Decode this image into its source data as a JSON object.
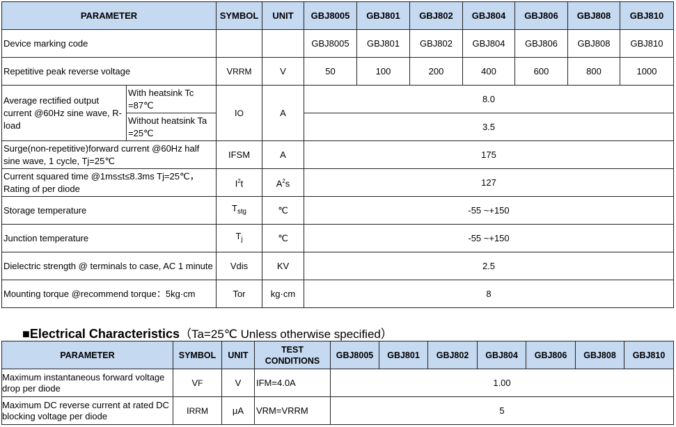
{
  "table1": {
    "headers": {
      "parameter": "PARAMETER",
      "symbol": "SYMBOL",
      "unit": "UNIT",
      "models": [
        "GBJ8005",
        "GBJ801",
        "GBJ802",
        "GBJ804",
        "GBJ806",
        "GBJ808",
        "GBJ810"
      ]
    },
    "marking": {
      "param": "Device marking code",
      "values": [
        "GBJ8005",
        "GBJ801",
        "GBJ802",
        "GBJ804",
        "GBJ806",
        "GBJ808",
        "GBJ810"
      ]
    },
    "vrrm": {
      "param": "Repetitive peak reverse voltage",
      "sym": "V",
      "sym_sub": "RRM",
      "unit": "V",
      "values": [
        "50",
        "100",
        "200",
        "400",
        "600",
        "800",
        "1000"
      ]
    },
    "io": {
      "param": "Average rectified output current  @60Hz sine wave, R-load",
      "cond1": "With heatsink Tc =87℃",
      "cond2": "Without heatsink Ta =25℃",
      "sym": "I",
      "sym_sub": "O",
      "unit": "A",
      "value1": "8.0",
      "value2": "3.5"
    },
    "ifsm": {
      "param": "Surge(non-repetitive)forward current @60Hz half sine wave, 1 cycle, Tj=25℃",
      "sym": "I",
      "sym_sub": "FSM",
      "unit": "A",
      "value": "175"
    },
    "i2t": {
      "param": "Current squared time @1ms≤t≤8.3ms Tj=25℃， Rating of per diode",
      "sym": "I",
      "sym_sup": "2",
      "sym_end": "t",
      "unit": "A",
      "unit_sup": "2",
      "unit_end": "s",
      "value": "127"
    },
    "tstg": {
      "param": "Storage temperature",
      "sym": "T",
      "sym_sub": "stg",
      "unit": "℃",
      "value": "-55 ~+150"
    },
    "tj": {
      "param": "Junction temperature",
      "sym": "T",
      "sym_sub": "j",
      "unit": "℃",
      "value": "-55 ~+150"
    },
    "vdis": {
      "param": "Dielectric strength @ terminals to case, AC 1 minute",
      "sym": "Vdis",
      "unit": "KV",
      "value": "2.5"
    },
    "tor": {
      "param": "Mounting torque @recommend torque：5kg·cm",
      "sym": "Tor",
      "unit": "kg·cm",
      "value": "8"
    }
  },
  "section2": {
    "bullet": "■",
    "title": "Electrical Characteristics",
    "note": "（Ta=25℃ Unless otherwise specified）"
  },
  "table2": {
    "headers": {
      "parameter": "PARAMETER",
      "symbol": "SYMBOL",
      "unit": "UNIT",
      "test": "TEST CONDITIONS",
      "models": [
        "GBJ8005",
        "GBJ801",
        "GBJ802",
        "GBJ804",
        "GBJ806",
        "GBJ808",
        "GBJ810"
      ]
    },
    "vf": {
      "param": "Maximum instantaneous forward voltage drop per diode",
      "sym": "V",
      "sym_sub": "F",
      "unit": "V",
      "cond": "IFM=4.0A",
      "value": "1.00"
    },
    "irrm": {
      "param": "Maximum DC reverse current at rated DC blocking voltage per diode",
      "sym": "I",
      "sym_sub": "RRM",
      "unit": "μA",
      "cond": "VRM=VRRM",
      "value": "5"
    }
  }
}
